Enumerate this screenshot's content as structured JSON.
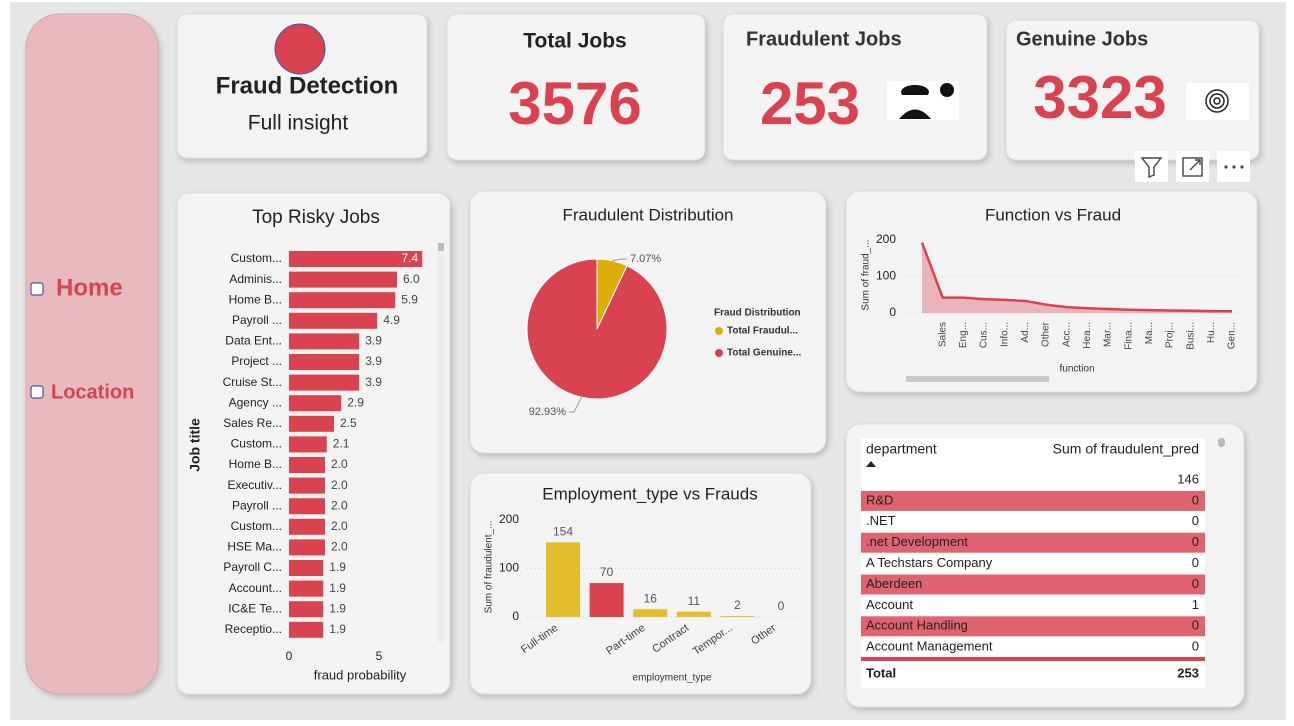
{
  "nav": [
    "Home",
    "Location"
  ],
  "header": {
    "title": "Fraud Detection",
    "subtitle": "Full insight"
  },
  "cards": [
    {
      "title": "Total Jobs",
      "value": "3576"
    },
    {
      "title": "Fraudulent Jobs",
      "value": "253"
    },
    {
      "title": "Genuine Jobs",
      "value": "3323"
    }
  ],
  "chart_data": [
    {
      "type": "hbar",
      "title": "Top Risky Jobs",
      "xlabel": "fraud probability",
      "ylabel": "Job title",
      "color": "#d9434f",
      "categories": [
        "Custom...",
        "Adminis...",
        "Home B...",
        "Payroll ...",
        "Data Ent...",
        "Project ...",
        "Cruise St...",
        "Agency ...",
        "Sales Re...",
        "Custom...",
        "Home B...",
        "Executiv...",
        "Payroll ...",
        "Custom...",
        "HSE Ma...",
        "Payroll C...",
        "Account...",
        "IC&E Te...",
        "Receptio..."
      ],
      "values": [
        7.4,
        6.0,
        5.9,
        4.9,
        3.9,
        3.9,
        3.9,
        2.9,
        2.5,
        2.1,
        2.0,
        2.0,
        2.0,
        2.0,
        2.0,
        1.9,
        1.9,
        1.9,
        1.9
      ],
      "value_labels": [
        "7.4",
        "6.0",
        "5.9",
        "4.9",
        "3.9",
        "3.9",
        "3.9",
        "2.9",
        "2.5",
        "2.1",
        "2.0",
        "2.0",
        "2.0",
        "2.0",
        "2.0",
        "1.9",
        "1.9",
        "1.9",
        "1.9"
      ],
      "xlim": [
        0,
        7.5
      ],
      "xticks": [
        0,
        5
      ]
    },
    {
      "type": "pie",
      "title": "Fraudulent Distribution",
      "legend_title": "Fraud Distribution",
      "series": [
        {
          "name": "Total Fraudul...",
          "color": "#dcae0a"
        },
        {
          "name": "Total Genuine...",
          "color": "#d9434f"
        }
      ],
      "values": [
        7.07,
        92.93
      ],
      "value_labels": [
        "7.07%",
        "92.93%"
      ]
    },
    {
      "type": "area",
      "title": "Function vs Fraud",
      "xlabel": "function",
      "ylabel": "Sum of fraud_...",
      "color": "#d9434f",
      "categories": [
        null,
        "Sales",
        "Eng...",
        "Cus...",
        "Info...",
        "Ad...",
        "Other",
        "Acc...",
        "Hea...",
        "Mar...",
        "Fina...",
        "Ma...",
        "Proj...",
        "Busi...",
        "Hu...",
        "Gen..."
      ],
      "values": [
        193,
        42,
        42,
        38,
        36,
        33,
        23,
        16,
        13,
        11,
        9,
        8,
        7,
        6,
        5,
        5
      ],
      "ylim": [
        0,
        200
      ],
      "yticks": [
        0,
        100,
        200
      ],
      "grid": true
    },
    {
      "type": "bar",
      "title": "Employment_type vs Frauds",
      "xlabel": "employment_type",
      "ylabel": "Sum of fraudulent_...",
      "categories": [
        "Full-time",
        null,
        "Part-time",
        "Contract",
        "Tempor...",
        "Other"
      ],
      "values": [
        154,
        70,
        16,
        11,
        2,
        0
      ],
      "colors": [
        "#e2be2f",
        "#d9434f",
        "#e2be2f",
        "#e2be2f",
        "#e2be2f",
        "#e2be2f"
      ],
      "ylim": [
        0,
        200
      ],
      "yticks": [
        0,
        100,
        200
      ],
      "grid": true
    }
  ],
  "table": {
    "columns": [
      "department",
      "Sum of fraudulent_pred"
    ],
    "rows": [
      [
        null,
        "146"
      ],
      [
        "R&D",
        "0"
      ],
      [
        ".NET",
        "0"
      ],
      [
        ".net Development",
        "0"
      ],
      [
        "A Techstars Company",
        "0"
      ],
      [
        "Aberdeen",
        "0"
      ],
      [
        "Account",
        "1"
      ],
      [
        "Account Handling",
        "0"
      ],
      [
        "Account Management",
        "0"
      ]
    ],
    "total": [
      "Total",
      "253"
    ]
  }
}
